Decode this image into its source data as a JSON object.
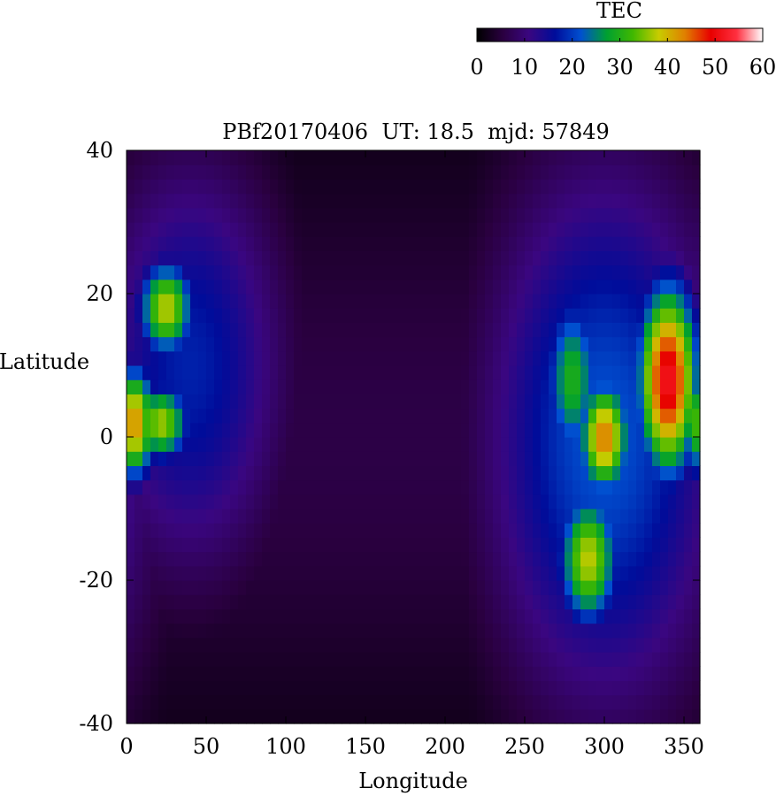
{
  "chart_data": {
    "type": "heatmap",
    "title": "PBf20170406  UT: 18.5  mjd: 57849",
    "xlabel": "Longitude",
    "ylabel": "Latitude",
    "xlim": [
      0,
      360
    ],
    "ylim": [
      -40,
      40
    ],
    "x_ticks": [
      "0",
      "50",
      "100",
      "150",
      "200",
      "250",
      "300",
      "350"
    ],
    "x_tick_values": [
      0,
      50,
      100,
      150,
      200,
      250,
      300,
      350
    ],
    "y_ticks": [
      "40",
      "20",
      "0",
      "-20",
      "-40"
    ],
    "y_tick_values": [
      40,
      20,
      0,
      -20,
      -40
    ],
    "grid_step": {
      "lon": 5,
      "lat": 2
    },
    "colorbar": {
      "label": "TEC",
      "range": [
        0,
        60
      ],
      "ticks": [
        "0",
        "10",
        "20",
        "30",
        "40",
        "50",
        "60"
      ],
      "tick_values": [
        0,
        10,
        20,
        30,
        40,
        50,
        60
      ],
      "placement": "top-right",
      "colors": [
        "#000000",
        "#2a0040",
        "#3a0680",
        "#000c9a",
        "#0050d0",
        "#00a030",
        "#40b800",
        "#c8cc00",
        "#e08000",
        "#e80000",
        "#ff3040",
        "#ffffff"
      ]
    },
    "features": [
      {
        "name": "crest",
        "lon": 5,
        "lat": 2,
        "tec": 43,
        "sx": 10,
        "sy": 6
      },
      {
        "name": "crest",
        "lon": 25,
        "lat": 18,
        "tec": 38,
        "sx": 13,
        "sy": 5
      },
      {
        "name": "crest",
        "lon": 22,
        "lat": 2,
        "tec": 37,
        "sx": 13,
        "sy": 4
      },
      {
        "name": "crest",
        "lon": 340,
        "lat": 8,
        "tec": 52,
        "sx": 14,
        "sy": 10
      },
      {
        "name": "crest",
        "lon": 300,
        "lat": 0,
        "tec": 44,
        "sx": 12,
        "sy": 6
      },
      {
        "name": "crest",
        "lon": 290,
        "lat": -17,
        "tec": 38,
        "sx": 14,
        "sy": 7
      },
      {
        "name": "crest",
        "lon": 280,
        "lat": 8,
        "tec": 30,
        "sx": 13,
        "sy": 9
      }
    ]
  }
}
